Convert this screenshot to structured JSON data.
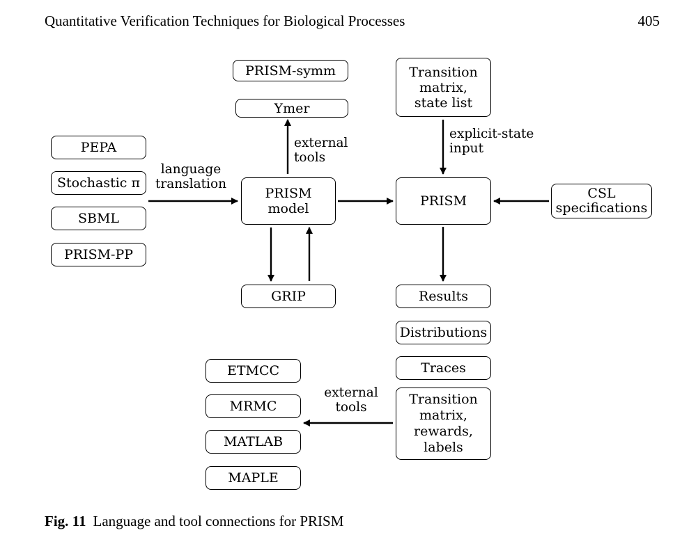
{
  "header": {
    "running_title": "Quantitative Verification Techniques for Biological Processes",
    "page_number": "405"
  },
  "figure": {
    "input_languages": [
      "PEPA",
      "Stochastic π",
      "SBML",
      "PRISM-PP"
    ],
    "language_translation_label": "language\ntranslation",
    "prism_model": "PRISM\nmodel",
    "prism": "PRISM",
    "external_tools_top": [
      "PRISM-symm",
      "Ymer"
    ],
    "external_tools_top_label": "external\ntools",
    "grip": "GRIP",
    "explicit_input": "Transition\nmatrix,\nstate list",
    "explicit_input_label": "explicit-state\ninput",
    "csl": "CSL\nspecifications",
    "outputs": [
      "Results",
      "Distributions",
      "Traces"
    ],
    "output_matrix": "Transition\nmatrix,\nrewards,\nlabels",
    "external_tools_bottom_label": "external\ntools",
    "external_tools_bottom": [
      "ETMCC",
      "MRMC",
      "MATLAB",
      "MAPLE"
    ]
  },
  "caption": {
    "number": "Fig. 11",
    "text": "Language and tool connections for PRISM"
  }
}
